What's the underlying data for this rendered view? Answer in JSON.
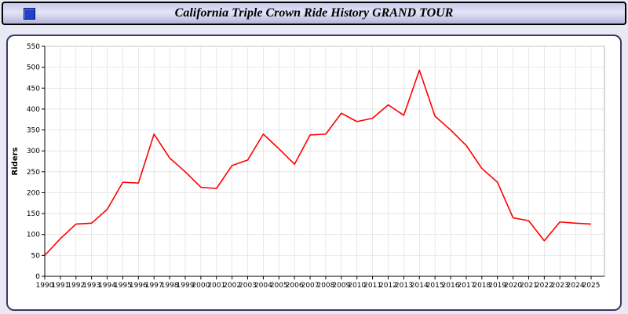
{
  "title_bar": {
    "title": "California Triple Crown Ride History GRAND TOUR",
    "icon": "blue-square-window-icon"
  },
  "colors": {
    "page_background": "#e9e9f6",
    "panel_background": "#ffffff",
    "panel_border": "#3a3a5e",
    "grid": "#d9d9d9",
    "plot_border": "#b0b0b0",
    "axis": "#000000",
    "line": "#ff0000"
  },
  "chart_data": {
    "type": "line",
    "title": "California Triple Crown Ride History GRAND TOUR",
    "xlabel": "",
    "ylabel": "Riders",
    "ylim": [
      0,
      550
    ],
    "ytick_step": 50,
    "grid": true,
    "legend": "none",
    "line_color": "#ff0000",
    "x": [
      1990,
      1991,
      1992,
      1993,
      1994,
      1995,
      1996,
      1997,
      1998,
      1999,
      2000,
      2001,
      2002,
      2003,
      2004,
      2005,
      2006,
      2007,
      2008,
      2009,
      2010,
      2011,
      2012,
      2013,
      2014,
      2015,
      2016,
      2017,
      2018,
      2019,
      2020,
      2021,
      2022,
      2023,
      2024,
      2025
    ],
    "series": [
      {
        "name": "Riders",
        "values": [
          50,
          90,
          125,
          127,
          160,
          225,
          223,
          340,
          283,
          250,
          213,
          210,
          265,
          278,
          340,
          305,
          268,
          338,
          340,
          390,
          370,
          378,
          410,
          385,
          493,
          383,
          350,
          313,
          258,
          225,
          140,
          133,
          85,
          130,
          127,
          125
        ]
      }
    ]
  }
}
